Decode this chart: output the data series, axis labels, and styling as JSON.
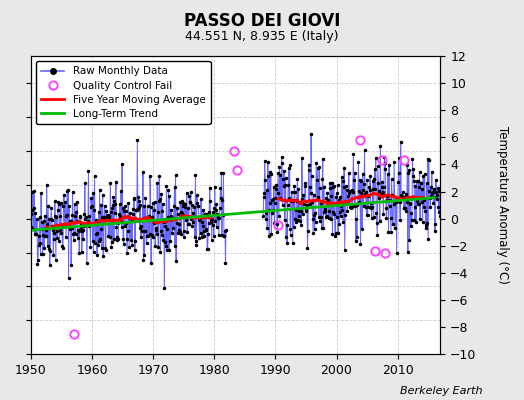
{
  "title": "PASSO DEI GIOVI",
  "subtitle": "44.551 N, 8.935 E (Italy)",
  "ylabel": "Temperature Anomaly (°C)",
  "watermark": "Berkeley Earth",
  "xlim": [
    1950,
    2017
  ],
  "ylim": [
    -10,
    12
  ],
  "yticks": [
    -10,
    -8,
    -6,
    -4,
    -2,
    0,
    2,
    4,
    6,
    8,
    10,
    12
  ],
  "xticks": [
    1950,
    1960,
    1970,
    1980,
    1990,
    2000,
    2010
  ],
  "bg_color": "#e8e8e8",
  "plot_bg_color": "#ffffff",
  "raw_line_color": "#6666ff",
  "raw_dot_color": "#000000",
  "ma_color": "#ff0000",
  "trend_color": "#00bb00",
  "qc_color": "#ff44ff",
  "trend_x": [
    1950,
    2016
  ],
  "trend_y": [
    -0.85,
    1.55
  ],
  "gap_start": 1982,
  "gap_end": 1988,
  "seed": 42,
  "noise_scale1": 1.55,
  "noise_scale2": 1.55,
  "base1": -0.4,
  "base2": 0.85,
  "slope": 0.013,
  "qc_times": [
    1957.0,
    1983.2,
    1983.75,
    1990.5,
    2003.8,
    2006.3,
    2007.5,
    2008.0,
    2011.0
  ],
  "qc_vals": [
    -8.5,
    5.0,
    3.6,
    -0.5,
    5.8,
    -2.4,
    4.3,
    -2.5,
    4.3
  ]
}
